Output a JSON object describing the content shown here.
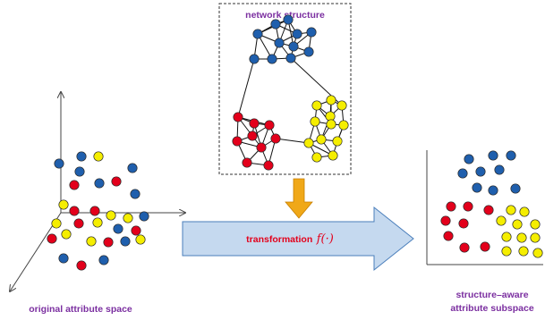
{
  "labels": {
    "network_title": "network structure",
    "transform_word": "transformation",
    "transform_func": "f(·)",
    "original_space": "original attribute space",
    "subspace_line1": "structure–aware",
    "subspace_line2": "attribute subspace"
  },
  "colors": {
    "blue": "#1f5fad",
    "red": "#e3001b",
    "yellow": "#f5ee00",
    "label_purple": "#7b2fa0",
    "label_red": "#e3001b",
    "arrow_fill": "#c5d9ef",
    "arrow_stroke": "#4a7ebb",
    "down_arrow_fill": "#f0a818",
    "box_border": "#333333",
    "node_outline": "#2a2a2a"
  }
}
